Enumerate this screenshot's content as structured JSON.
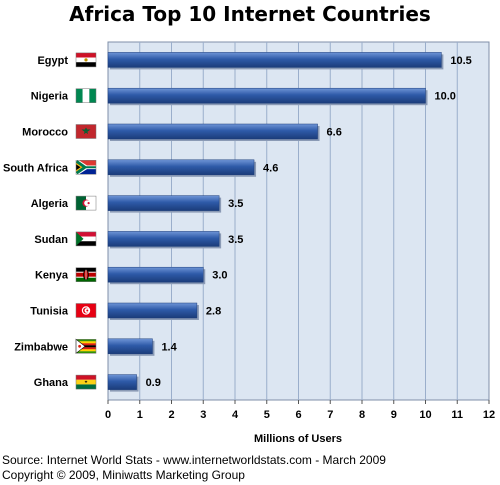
{
  "chart_data": {
    "type": "bar",
    "orientation": "horizontal",
    "title": "Africa Top 10 Internet Countries",
    "categories": [
      "Egypt",
      "Nigeria",
      "Morocco",
      "South Africa",
      "Algeria",
      "Sudan",
      "Kenya",
      "Tunisia",
      "Zimbabwe",
      "Ghana"
    ],
    "values": [
      10.5,
      10.0,
      6.6,
      4.6,
      3.5,
      3.5,
      3.0,
      2.8,
      1.4,
      0.9
    ],
    "value_labels": [
      "10.5",
      "10.0",
      "6.6",
      "4.6",
      "3.5",
      "3.5",
      "3.0",
      "2.8",
      "1.4",
      "0.9"
    ],
    "xlabel": "Millions of Users",
    "ylabel": "",
    "xlim": [
      0,
      12
    ],
    "xticks": [
      "0",
      "1",
      "2",
      "3",
      "4",
      "5",
      "6",
      "7",
      "8",
      "9",
      "10",
      "11",
      "12"
    ],
    "grid": true,
    "legend": "none",
    "flags": [
      "egypt-flag-icon",
      "nigeria-flag-icon",
      "morocco-flag-icon",
      "south-africa-flag-icon",
      "algeria-flag-icon",
      "sudan-flag-icon",
      "kenya-flag-icon",
      "tunisia-flag-icon",
      "zimbabwe-flag-icon",
      "ghana-flag-icon"
    ],
    "colors": {
      "bar": "#2e5aa8",
      "plot_bg": "#dce6f2",
      "grid": "#9aaecb"
    }
  },
  "footer": {
    "source": "Source: Internet World Stats  -  www.internetworldstats.com - March 2009",
    "copyright": "Copyright © 2009, Miniwatts Marketing Group"
  }
}
